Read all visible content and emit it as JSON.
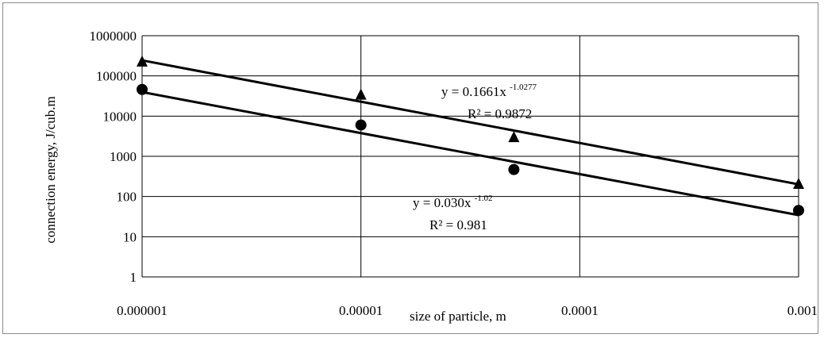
{
  "chart_data": {
    "type": "scatter",
    "title": "",
    "xlabel": "size of particle, m",
    "ylabel": "connection energy, J/cub.m",
    "x_scale": "log",
    "y_scale": "log",
    "xlim": [
      1e-06,
      0.001
    ],
    "ylim": [
      1,
      1000000
    ],
    "grid": true,
    "x_tick_labels": [
      "0.000001",
      "0.00001",
      "0.0001",
      "0.001"
    ],
    "y_tick_labels": [
      "1",
      "10",
      "100",
      "1000",
      "10000",
      "100000",
      "1000000"
    ],
    "series": [
      {
        "marker": "triangle",
        "x": [
          1e-06,
          1e-05,
          5e-05,
          0.001
        ],
        "y": [
          220000,
          33000,
          2900,
          200
        ],
        "trendline": {
          "a": 0.1661,
          "b": -1.0277
        },
        "equation_text": "y = 0.1661x",
        "equation_exponent": "-1.0277",
        "r2_text": "R² = 0.9872"
      },
      {
        "marker": "circle",
        "x": [
          1e-06,
          1e-05,
          5e-05,
          0.001
        ],
        "y": [
          46000,
          6000,
          470,
          45
        ],
        "trendline": {
          "a": 0.03,
          "b": -1.02
        },
        "equation_text": "y = 0.030x",
        "equation_exponent": "-1.02",
        "r2_text": "R² = 0.981"
      }
    ]
  }
}
